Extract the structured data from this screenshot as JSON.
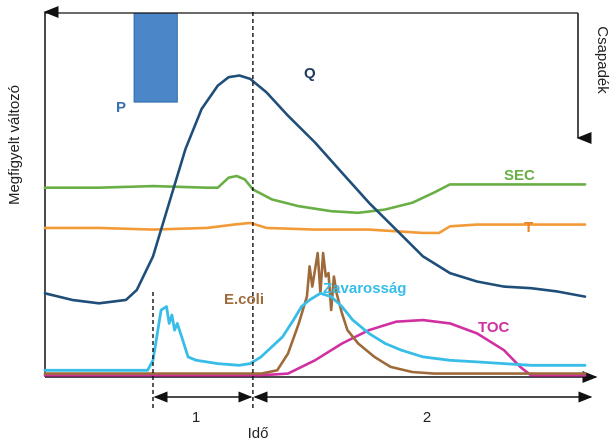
{
  "chart_data": {
    "type": "line",
    "title": "",
    "ylabel": "Megfigyelt változó",
    "y2label": "Csapadék",
    "xlabel": "Idő",
    "xlim": [
      0,
      100
    ],
    "ylim": [
      0,
      100
    ],
    "grid": false,
    "legend": "none (inline labels)",
    "periods": [
      {
        "label": "1",
        "start": 20,
        "end": 38.5
      },
      {
        "label": "2",
        "start": 38.5,
        "end": 100
      }
    ],
    "precipitation": {
      "name": "P",
      "color": "#4a86c8",
      "x_start": 16.5,
      "x_end": 24.5,
      "value": 68
    },
    "series": [
      {
        "name": "Q",
        "color": "#1f4e79",
        "points": [
          [
            0,
            25
          ],
          [
            5,
            23
          ],
          [
            10,
            22
          ],
          [
            15,
            23
          ],
          [
            17,
            26
          ],
          [
            20,
            36
          ],
          [
            23,
            52
          ],
          [
            26,
            68
          ],
          [
            29,
            80
          ],
          [
            32,
            87
          ],
          [
            34,
            89.5
          ],
          [
            36,
            90
          ],
          [
            38,
            89
          ],
          [
            41,
            85
          ],
          [
            45,
            78
          ],
          [
            50,
            70
          ],
          [
            55,
            61
          ],
          [
            60,
            52
          ],
          [
            65,
            44
          ],
          [
            70,
            36
          ],
          [
            75,
            31
          ],
          [
            80,
            28.5
          ],
          [
            85,
            27
          ],
          [
            90,
            26.5
          ],
          [
            95,
            25.5
          ],
          [
            100,
            24
          ]
        ]
      },
      {
        "name": "SEC",
        "color": "#6aaf45",
        "points": [
          [
            0,
            56.5
          ],
          [
            10,
            56.5
          ],
          [
            20,
            57
          ],
          [
            30,
            56.5
          ],
          [
            32,
            56.5
          ],
          [
            34,
            59.5
          ],
          [
            35.5,
            60
          ],
          [
            37,
            59
          ],
          [
            38.5,
            56
          ],
          [
            42,
            53
          ],
          [
            47,
            51
          ],
          [
            53,
            49.5
          ],
          [
            58,
            49
          ],
          [
            63,
            50
          ],
          [
            68,
            52
          ],
          [
            72,
            55
          ],
          [
            75,
            57.5
          ],
          [
            80,
            57.5
          ],
          [
            90,
            57.5
          ],
          [
            100,
            57.5
          ]
        ]
      },
      {
        "name": "T",
        "color": "#f29a38",
        "points": [
          [
            0,
            44.5
          ],
          [
            10,
            44.5
          ],
          [
            20,
            44
          ],
          [
            30,
            44.5
          ],
          [
            35,
            45.5
          ],
          [
            38,
            46
          ],
          [
            41,
            44.5
          ],
          [
            50,
            44
          ],
          [
            60,
            44
          ],
          [
            70,
            43
          ],
          [
            73,
            43
          ],
          [
            75,
            45
          ],
          [
            80,
            45.5
          ],
          [
            90,
            45.5
          ],
          [
            100,
            45.5
          ]
        ]
      },
      {
        "name": "E.coli",
        "color": "#9e6a3a",
        "points": [
          [
            0,
            1
          ],
          [
            35,
            1
          ],
          [
            40,
            1
          ],
          [
            43,
            2
          ],
          [
            45,
            7
          ],
          [
            47,
            16
          ],
          [
            48.5,
            24
          ],
          [
            49,
            33
          ],
          [
            49.5,
            27
          ],
          [
            50.5,
            37
          ],
          [
            51,
            25
          ],
          [
            51.5,
            37
          ],
          [
            52,
            30
          ],
          [
            52.5,
            31
          ],
          [
            53,
            20
          ],
          [
            53.5,
            30
          ],
          [
            54,
            25
          ],
          [
            55,
            19
          ],
          [
            56,
            14
          ],
          [
            58,
            10
          ],
          [
            61,
            6
          ],
          [
            64,
            3
          ],
          [
            68,
            1.5
          ],
          [
            72,
            1
          ],
          [
            100,
            1
          ]
        ]
      },
      {
        "name": "Zavarosság",
        "color": "#38bde8",
        "points": [
          [
            0,
            2
          ],
          [
            10,
            2
          ],
          [
            19,
            2
          ],
          [
            20,
            5
          ],
          [
            21.5,
            20
          ],
          [
            22.5,
            21
          ],
          [
            23,
            16
          ],
          [
            23.5,
            18.5
          ],
          [
            24,
            14
          ],
          [
            24.5,
            16
          ],
          [
            25.5,
            11
          ],
          [
            26.5,
            6
          ],
          [
            28,
            5
          ],
          [
            32,
            4
          ],
          [
            36,
            3.5
          ],
          [
            38,
            4
          ],
          [
            40,
            6
          ],
          [
            42,
            9
          ],
          [
            44,
            12
          ],
          [
            46,
            17
          ],
          [
            47.5,
            21
          ],
          [
            49,
            23
          ],
          [
            51,
            25
          ],
          [
            53,
            24
          ],
          [
            55,
            21
          ],
          [
            57,
            17
          ],
          [
            60,
            13
          ],
          [
            63,
            10
          ],
          [
            66,
            8
          ],
          [
            70,
            6
          ],
          [
            75,
            5
          ],
          [
            80,
            4.5
          ],
          [
            85,
            4
          ],
          [
            90,
            3.5
          ],
          [
            95,
            3.5
          ],
          [
            100,
            3.5
          ]
        ]
      },
      {
        "name": "TOC",
        "color": "#d030a0",
        "points": [
          [
            0,
            0.5
          ],
          [
            40,
            0.5
          ],
          [
            45,
            1
          ],
          [
            50,
            5
          ],
          [
            55,
            10
          ],
          [
            60,
            14
          ],
          [
            65,
            16.5
          ],
          [
            70,
            17
          ],
          [
            75,
            16
          ],
          [
            80,
            13
          ],
          [
            85,
            8
          ],
          [
            88,
            3
          ],
          [
            90,
            0.5
          ],
          [
            100,
            0.5
          ]
        ]
      }
    ]
  },
  "labels": {
    "P": "P",
    "Q": "Q",
    "SEC": "SEC",
    "T": "T",
    "E.coli": "E.coli",
    "Zavarosság": "Zavarosság",
    "TOC": "TOC",
    "period_1": "1",
    "period_2": "2",
    "xlabel": "Idő",
    "ylabel": "Megfigyelt változó",
    "y2label": "Csapadék"
  }
}
